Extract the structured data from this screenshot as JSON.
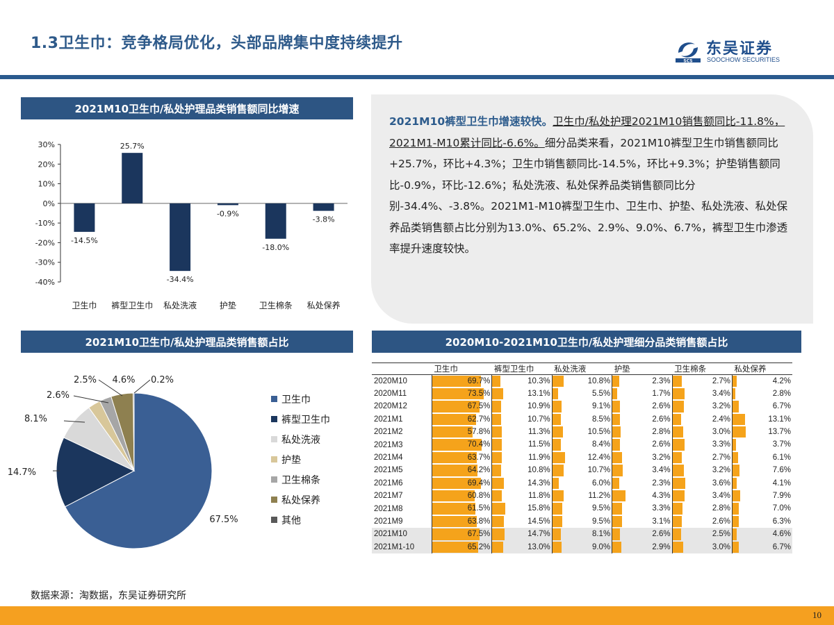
{
  "header": {
    "title": "1.3卫生巾：竞争格局优化，头部品牌集中度持续提升",
    "logo_cn": "东吴证券",
    "logo_en": "SOOCHOW SECURITIES",
    "logo_abbr": "SCS"
  },
  "panels": {
    "bar_title": "2021M10卫生巾/私处护理品类销售额同比增速",
    "pie_title": "2021M10卫生巾/私处护理品类销售额占比",
    "table_title": "2020M10-2021M10卫生巾/私处护理细分品类销售额占比"
  },
  "commentary": {
    "lead": "2021M10裤型卫生巾增速较快。",
    "underlined": "卫生巾/私处护理2021M10销售额同比-11.8%，2021M1-M10累计同比-6.6%。",
    "body": "细分品类来看，2021M10裤型卫生巾销售额同比+25.7%，环比+4.3%；卫生巾销售额同比-14.5%，环比+9.3%；护垫销售额同比-0.9%，环比-12.6%；私处洗液、私处保养品类销售额同比分别-34.4%、-3.8%。2021M1-M10裤型卫生巾、卫生巾、护垫、私处洗液、私处保养品类销售额占比分别为13.0%、65.2%、2.9%、9.0%、6.7%，裤型卫生巾渗透率提升速度较快。"
  },
  "chart_data": [
    {
      "type": "bar",
      "title": "2021M10卫生巾/私处护理品类销售额同比增速",
      "categories": [
        "卫生巾",
        "裤型卫生巾",
        "私处洗液",
        "护垫",
        "卫生棉条",
        "私处保养"
      ],
      "values": [
        -14.5,
        25.7,
        -34.4,
        -0.9,
        -18.0,
        -3.8
      ],
      "data_labels": [
        "-14.5%",
        "25.7%",
        "-34.4%",
        "-0.9%",
        "-18.0%",
        "-3.8%"
      ],
      "ylim": [
        -40,
        30
      ],
      "yticks": [
        30,
        20,
        10,
        0,
        -10,
        -20,
        -30,
        -40
      ],
      "ytick_labels": [
        "30%",
        "20%",
        "10%",
        "0%",
        "-10%",
        "-20%",
        "-30%",
        "-40%"
      ],
      "color": "#1b365d",
      "grid": false
    },
    {
      "type": "pie",
      "title": "2021M10卫生巾/私处护理品类销售额占比",
      "labels": [
        "卫生巾",
        "裤型卫生巾",
        "私处洗液",
        "护垫",
        "卫生棉条",
        "私处保养",
        "其他"
      ],
      "values": [
        67.5,
        14.7,
        8.1,
        2.6,
        2.5,
        4.6,
        0.2
      ],
      "data_labels": [
        "67.5%",
        "14.7%",
        "8.1%",
        "2.6%",
        "2.5%",
        "4.6%",
        "0.2%"
      ],
      "colors": [
        "#3a5f94",
        "#1b365d",
        "#d9d9d9",
        "#d8c79a",
        "#a6a6a6",
        "#8e8050",
        "#595959"
      ],
      "legend_position": "right"
    },
    {
      "type": "table",
      "title": "2020M10-2021M10卫生巾/私处护理细分品类销售额占比",
      "columns": [
        "卫生巾",
        "裤型卫生巾",
        "私处洗液",
        "护垫",
        "卫生棉条",
        "私处保养"
      ],
      "bar_color": "#f5a31b",
      "highlight_color": "#e6e6e6",
      "rows": [
        {
          "label": "2020M10",
          "values": [
            69.7,
            10.3,
            10.8,
            2.3,
            2.7,
            4.2
          ],
          "display": [
            "69.7%",
            "10.3%",
            "10.8%",
            "2.3%",
            "2.7%",
            "4.2%"
          ]
        },
        {
          "label": "2020M11",
          "values": [
            73.5,
            13.1,
            5.5,
            1.7,
            3.4,
            2.8
          ],
          "display": [
            "73.5%",
            "13.1%",
            "5.5%",
            "1.7%",
            "3.4%",
            "2.8%"
          ]
        },
        {
          "label": "2020M12",
          "values": [
            67.5,
            10.9,
            9.1,
            2.6,
            3.2,
            6.7
          ],
          "display": [
            "67.5%",
            "10.9%",
            "9.1%",
            "2.6%",
            "3.2%",
            "6.7%"
          ]
        },
        {
          "label": "2021M1",
          "values": [
            62.7,
            10.7,
            8.5,
            2.6,
            2.4,
            13.1
          ],
          "display": [
            "62.7%",
            "10.7%",
            "8.5%",
            "2.6%",
            "2.4%",
            "13.1%"
          ]
        },
        {
          "label": "2021M2",
          "values": [
            57.8,
            11.3,
            10.5,
            2.8,
            3.0,
            13.7
          ],
          "display": [
            "57.8%",
            "11.3%",
            "10.5%",
            "2.8%",
            "3.0%",
            "13.7%"
          ]
        },
        {
          "label": "2021M3",
          "values": [
            70.4,
            11.5,
            8.4,
            2.6,
            3.3,
            3.7
          ],
          "display": [
            "70.4%",
            "11.5%",
            "8.4%",
            "2.6%",
            "3.3%",
            "3.7%"
          ]
        },
        {
          "label": "2021M4",
          "values": [
            63.7,
            11.9,
            12.4,
            3.2,
            2.7,
            6.1
          ],
          "display": [
            "63.7%",
            "11.9%",
            "12.4%",
            "3.2%",
            "2.7%",
            "6.1%"
          ]
        },
        {
          "label": "2021M5",
          "values": [
            64.2,
            10.8,
            10.7,
            3.4,
            3.2,
            7.6
          ],
          "display": [
            "64.2%",
            "10.8%",
            "10.7%",
            "3.4%",
            "3.2%",
            "7.6%"
          ]
        },
        {
          "label": "2021M6",
          "values": [
            69.4,
            14.3,
            6.0,
            2.3,
            3.6,
            4.1
          ],
          "display": [
            "69.4%",
            "14.3%",
            "6.0%",
            "2.3%",
            "3.6%",
            "4.1%"
          ]
        },
        {
          "label": "2021M7",
          "values": [
            60.8,
            11.8,
            11.2,
            4.3,
            3.4,
            7.9
          ],
          "display": [
            "60.8%",
            "11.8%",
            "11.2%",
            "4.3%",
            "3.4%",
            "7.9%"
          ]
        },
        {
          "label": "2021M8",
          "values": [
            61.5,
            15.8,
            9.5,
            3.3,
            2.8,
            7.0
          ],
          "display": [
            "61.5%",
            "15.8%",
            "9.5%",
            "3.3%",
            "2.8%",
            "7.0%"
          ]
        },
        {
          "label": "2021M9",
          "values": [
            63.8,
            14.5,
            9.5,
            3.1,
            2.6,
            6.3
          ],
          "display": [
            "63.8%",
            "14.5%",
            "9.5%",
            "3.1%",
            "2.6%",
            "6.3%"
          ]
        },
        {
          "label": "2021M10",
          "values": [
            67.5,
            14.7,
            8.1,
            2.6,
            2.5,
            4.6
          ],
          "display": [
            "67.5%",
            "14.7%",
            "8.1%",
            "2.6%",
            "2.5%",
            "4.6%"
          ],
          "highlight": true
        },
        {
          "label": "2021M1-10",
          "values": [
            65.2,
            13.0,
            9.0,
            2.9,
            3.0,
            6.7
          ],
          "display": [
            "65.2%",
            "13.0%",
            "9.0%",
            "2.9%",
            "3.0%",
            "6.7%"
          ],
          "highlight": true
        }
      ]
    }
  ],
  "footer": {
    "source": "数据来源：淘数据，东吴证券研究所",
    "page": "10"
  },
  "colors": {
    "title_blue": "#2e5a8a",
    "panel_header": "#2d5583",
    "footer_orange": "#f5a020",
    "rule_blue": "#2a5a8e"
  }
}
